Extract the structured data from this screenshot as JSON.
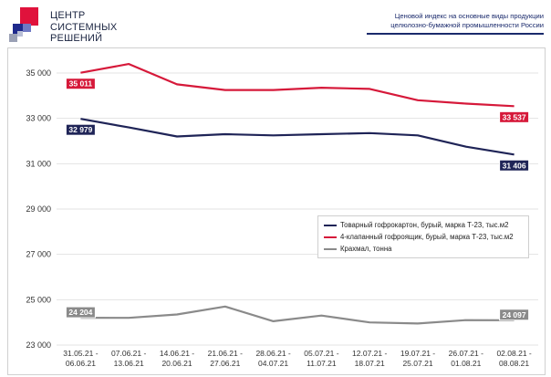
{
  "logo": {
    "lines": [
      "ЦЕНТР",
      "СИСТЕМНЫХ",
      "РЕШЕНИЙ"
    ]
  },
  "header": {
    "title_line1": "Ценовой индекс на основные виды продукции",
    "title_line2": "целюлозно-бумажной промышленности России"
  },
  "colors": {
    "navy": "#1f2457",
    "red": "#d6193a",
    "gray": "#8a8a8a",
    "label_navy": "#1f2457",
    "label_red": "#d6193a",
    "label_gray": "#7a7a7a"
  },
  "chart_data": {
    "type": "line",
    "categories": [
      [
        "31.05.21 -",
        "06.06.21"
      ],
      [
        "07.06.21 -",
        "13.06.21"
      ],
      [
        "14.06.21 -",
        "20.06.21"
      ],
      [
        "21.06.21 -",
        "27.06.21"
      ],
      [
        "28.06.21 -",
        "04.07.21"
      ],
      [
        "05.07.21 -",
        "11.07.21"
      ],
      [
        "12.07.21 -",
        "18.07.21"
      ],
      [
        "19.07.21 -",
        "25.07.21"
      ],
      [
        "26.07.21 -",
        "01.08.21"
      ],
      [
        "02.08.21 -",
        "08.08.21"
      ]
    ],
    "ylim": [
      23000,
      35000
    ],
    "yticks": [
      23000,
      25000,
      27000,
      29000,
      31000,
      33000,
      35000
    ],
    "ytick_labels": [
      "23 000",
      "25 000",
      "27 000",
      "29 000",
      "31 000",
      "33 000",
      "35 000"
    ],
    "grid": true,
    "legend_position": "right-middle",
    "series": [
      {
        "name": "Товарный гофрокартон, бурый, марка Т-23, тыс.м2",
        "color": "#1f2457",
        "values": [
          32979,
          32600,
          32200,
          32300,
          32250,
          32300,
          32350,
          32250,
          31750,
          31406
        ],
        "labels": [
          {
            "index": 0,
            "text": "32 979"
          },
          {
            "index": 9,
            "text": "31 406"
          }
        ]
      },
      {
        "name": "4-клапанный гофроящик, бурый, марка Т-23, тыс.м2",
        "color": "#d6193a",
        "values": [
          35011,
          35400,
          34500,
          34250,
          34250,
          34350,
          34300,
          33800,
          33650,
          33537
        ],
        "labels": [
          {
            "index": 0,
            "text": "35 011"
          },
          {
            "index": 9,
            "text": "33 537"
          }
        ]
      },
      {
        "name": "Крахмал, тонна",
        "color": "#8a8a8a",
        "values": [
          24204,
          24200,
          24350,
          24700,
          24050,
          24300,
          24000,
          23950,
          24100,
          24097
        ],
        "labels": [
          {
            "index": 0,
            "text": "24 204"
          },
          {
            "index": 9,
            "text": "24 097"
          }
        ]
      }
    ]
  }
}
